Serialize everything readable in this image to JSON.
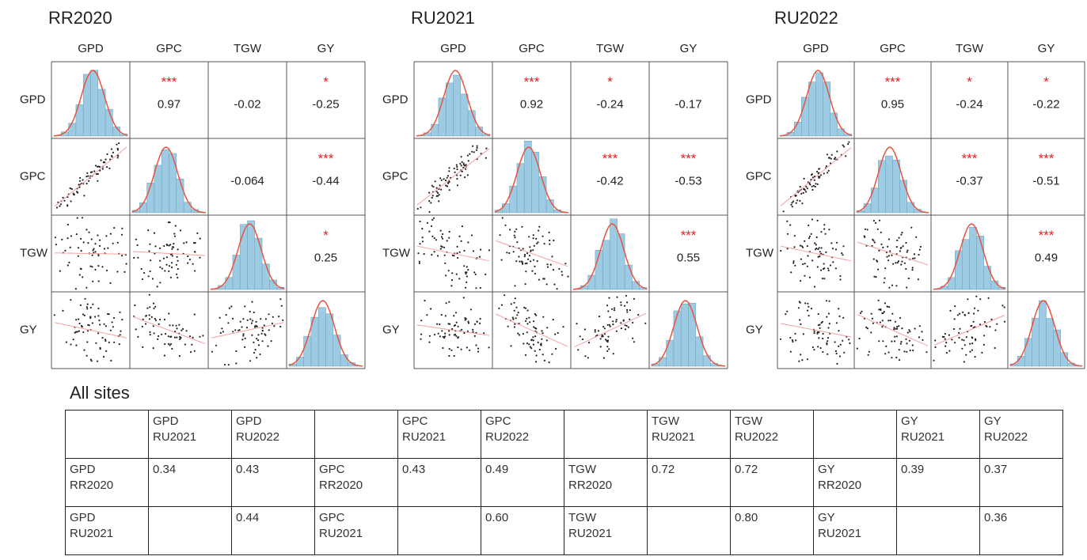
{
  "panels": [
    {
      "title": "RR2020",
      "variables": [
        "GPD",
        "GPC",
        "TGW",
        "GY"
      ],
      "correlations": [
        {
          "value": 0.97,
          "stars": "***"
        },
        {
          "value": -0.02
        },
        {
          "value": -0.25,
          "stars": "*"
        },
        {
          "value": -0.064
        },
        {
          "value": -0.44,
          "stars": "***"
        },
        {
          "value": 0.25,
          "stars": "*"
        }
      ]
    },
    {
      "title": "RU2021",
      "variables": [
        "GPD",
        "GPC",
        "TGW",
        "GY"
      ],
      "correlations": [
        {
          "value": 0.92,
          "stars": "***"
        },
        {
          "value": -0.24,
          "stars": "*"
        },
        {
          "value": -0.17
        },
        {
          "value": -0.42,
          "stars": "***"
        },
        {
          "value": -0.53,
          "stars": "***"
        },
        {
          "value": 0.55,
          "stars": "***"
        }
      ]
    },
    {
      "title": "RU2022",
      "variables": [
        "GPD",
        "GPC",
        "TGW",
        "GY"
      ],
      "correlations": [
        {
          "value": 0.95,
          "stars": "***"
        },
        {
          "value": -0.24,
          "stars": "*"
        },
        {
          "value": -0.22,
          "stars": "*"
        },
        {
          "value": -0.37,
          "stars": "***"
        },
        {
          "value": -0.51,
          "stars": "***"
        },
        {
          "value": 0.49,
          "stars": "***"
        }
      ]
    }
  ],
  "table": {
    "title": "All sites",
    "rows": [
      [
        null,
        "GPD\nRU2021",
        "GPD\nRU2022",
        null,
        "GPC\nRU2021",
        "GPC\nRU2022",
        null,
        "TGW\nRU2021",
        "TGW\nRU2022",
        null,
        "GY\nRU2021",
        "GY\nRU2022"
      ],
      [
        "GPD\nRR2020",
        "0.34",
        "0.43",
        "GPC\nRR2020",
        "0.43",
        "0.49",
        "TGW\nRR2020",
        "0.72",
        "0.72",
        "GY\nRR2020",
        "0.39",
        "0.37"
      ],
      [
        "GPD\nRU2021",
        null,
        "0.44",
        "GPC\nRU2021",
        null,
        "0.60",
        "TGW\nRU2021",
        null,
        "0.80",
        "GY\nRU2021",
        null,
        "0.36"
      ]
    ]
  }
}
